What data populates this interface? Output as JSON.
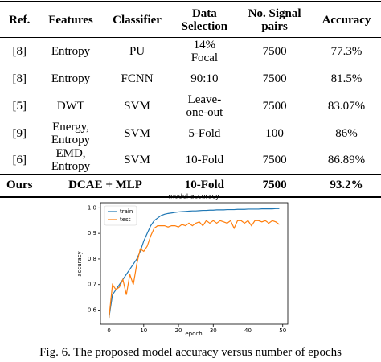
{
  "table": {
    "header": [
      "Ref.",
      "Features",
      "Classifier",
      "Data\nSelection",
      "No. Signal\npairs",
      "Accuracy"
    ],
    "rows": [
      [
        "[8]",
        "Entropy",
        "PU",
        "14%\nFocal",
        "7500",
        "77.3%"
      ],
      [
        "[8]",
        "Entropy",
        "FCNN",
        "90:10",
        "7500",
        "81.5%"
      ],
      [
        "[5]",
        "DWT",
        "SVM",
        "Leave-\none-out",
        "7500",
        "83.07%"
      ],
      [
        "[9]",
        "Energy,\nEntropy",
        "SVM",
        "5-Fold",
        "100",
        "86%"
      ],
      [
        "[6]",
        "EMD,\nEntropy",
        "SVM",
        "10-Fold",
        "7500",
        "86.89%"
      ],
      [
        "Ours",
        "DCAE + MLP",
        "",
        "10-Fold",
        "7500",
        "93.2%"
      ]
    ]
  },
  "chart_data": {
    "type": "line",
    "title": "model accuracy",
    "x_label": "epoch",
    "y_label": "accuracy",
    "x": [
      0,
      1,
      2,
      3,
      4,
      5,
      6,
      7,
      8,
      9,
      10,
      11,
      12,
      13,
      14,
      15,
      16,
      17,
      18,
      19,
      20,
      21,
      22,
      23,
      24,
      25,
      26,
      27,
      28,
      29,
      30,
      31,
      32,
      33,
      34,
      35,
      36,
      37,
      38,
      39,
      40,
      41,
      42,
      43,
      44,
      45,
      46,
      47,
      48,
      49
    ],
    "series": [
      {
        "name": "train",
        "color": "#1f77b4",
        "values": [
          0.57,
          0.66,
          0.68,
          0.7,
          0.72,
          0.74,
          0.76,
          0.78,
          0.8,
          0.83,
          0.87,
          0.9,
          0.93,
          0.95,
          0.96,
          0.97,
          0.975,
          0.978,
          0.98,
          0.982,
          0.984,
          0.985,
          0.986,
          0.987,
          0.988,
          0.988,
          0.989,
          0.99,
          0.99,
          0.991,
          0.991,
          0.992,
          0.992,
          0.992,
          0.993,
          0.993,
          0.993,
          0.994,
          0.994,
          0.994,
          0.995,
          0.995,
          0.995,
          0.995,
          0.996,
          0.996,
          0.996,
          0.996,
          0.997,
          0.997
        ]
      },
      {
        "name": "test",
        "color": "#ff7f0e",
        "values": [
          0.57,
          0.7,
          0.68,
          0.69,
          0.72,
          0.66,
          0.74,
          0.7,
          0.78,
          0.84,
          0.83,
          0.85,
          0.89,
          0.92,
          0.93,
          0.93,
          0.93,
          0.925,
          0.93,
          0.93,
          0.925,
          0.935,
          0.93,
          0.94,
          0.93,
          0.94,
          0.945,
          0.93,
          0.95,
          0.94,
          0.95,
          0.94,
          0.95,
          0.945,
          0.94,
          0.95,
          0.92,
          0.95,
          0.95,
          0.94,
          0.95,
          0.93,
          0.95,
          0.95,
          0.945,
          0.95,
          0.94,
          0.95,
          0.945,
          0.935
        ]
      }
    ],
    "xlim": [
      -2.45,
      51.45
    ],
    "xticks": [
      0,
      10,
      20,
      30,
      40,
      50
    ],
    "ylim": [
      0.545,
      1.02
    ],
    "yticks": [
      0.6,
      0.7,
      0.8,
      0.9,
      {
        "value": 1,
        "label": "1.0"
      }
    ],
    "legend": "upper left"
  },
  "caption": "Fig. 6. The proposed model accuracy versus number of epochs"
}
